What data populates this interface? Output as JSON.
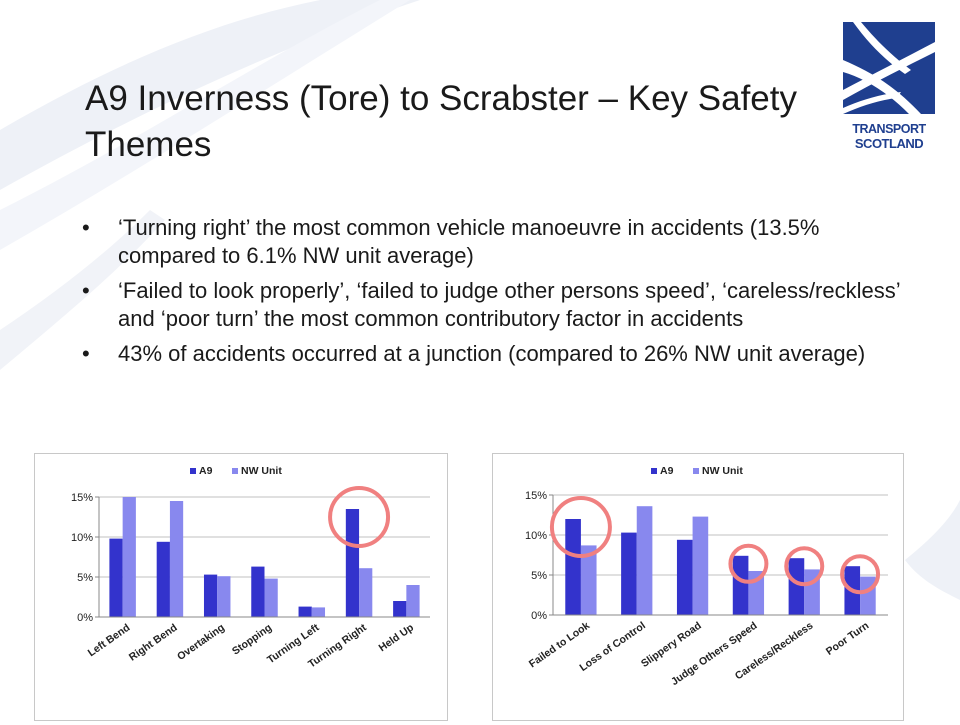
{
  "slide": {
    "title": "A9 Inverness (Tore) to Scrabster – Key Safety Themes",
    "bullets": [
      "‘Turning right’ the most common vehicle manoeuvre in accidents (13.5% compared to 6.1% NW unit average)",
      "‘Failed to look properly’, ‘failed to judge other persons speed’, ‘careless/reckless’ and ‘poor turn’ the most common contributory factor in accidents",
      "43% of accidents occurred at a junction (compared to 26% NW unit average)"
    ],
    "bullet_symbol": "•"
  },
  "logo": {
    "line1": "TRANSPORT",
    "line2": "SCOTLAND",
    "color": "#1f3f8f"
  },
  "colors": {
    "a9": "#3333cc",
    "nw": "#8888ee",
    "highlight": "#f08080"
  },
  "chart_data": [
    {
      "type": "bar",
      "categories": [
        "Left Bend",
        "Right Bend",
        "Overtaking",
        "Stopping",
        "Turning Left",
        "Turning Right",
        "Held Up"
      ],
      "series": [
        {
          "name": "A9",
          "values": [
            9.8,
            9.4,
            5.3,
            6.3,
            1.3,
            13.5,
            2.0
          ]
        },
        {
          "name": "NW Unit",
          "values": [
            15.0,
            14.5,
            5.1,
            4.8,
            1.2,
            6.1,
            4.0
          ]
        }
      ],
      "ylim": [
        0,
        15
      ],
      "yticks": [
        "0%",
        "5%",
        "10%",
        "15%"
      ],
      "legend": "top-center",
      "grid": true,
      "highlighted_categories": [
        "Turning Right"
      ]
    },
    {
      "type": "bar",
      "categories": [
        "Failed to Look",
        "Loss of Control",
        "Slippery Road",
        "Judge Others Speed",
        "Careless/Reckless",
        "Poor Turn"
      ],
      "series": [
        {
          "name": "A9",
          "values": [
            12.0,
            10.3,
            9.4,
            7.4,
            7.1,
            6.1
          ]
        },
        {
          "name": "NW Unit",
          "values": [
            8.7,
            13.6,
            12.3,
            5.5,
            5.7,
            4.8
          ]
        }
      ],
      "ylim": [
        0,
        15
      ],
      "yticks": [
        "0%",
        "5%",
        "10%",
        "15%"
      ],
      "legend": "top-center",
      "grid": true,
      "highlighted_categories": [
        "Failed to Look",
        "Judge Others Speed",
        "Careless/Reckless",
        "Poor Turn"
      ]
    }
  ]
}
